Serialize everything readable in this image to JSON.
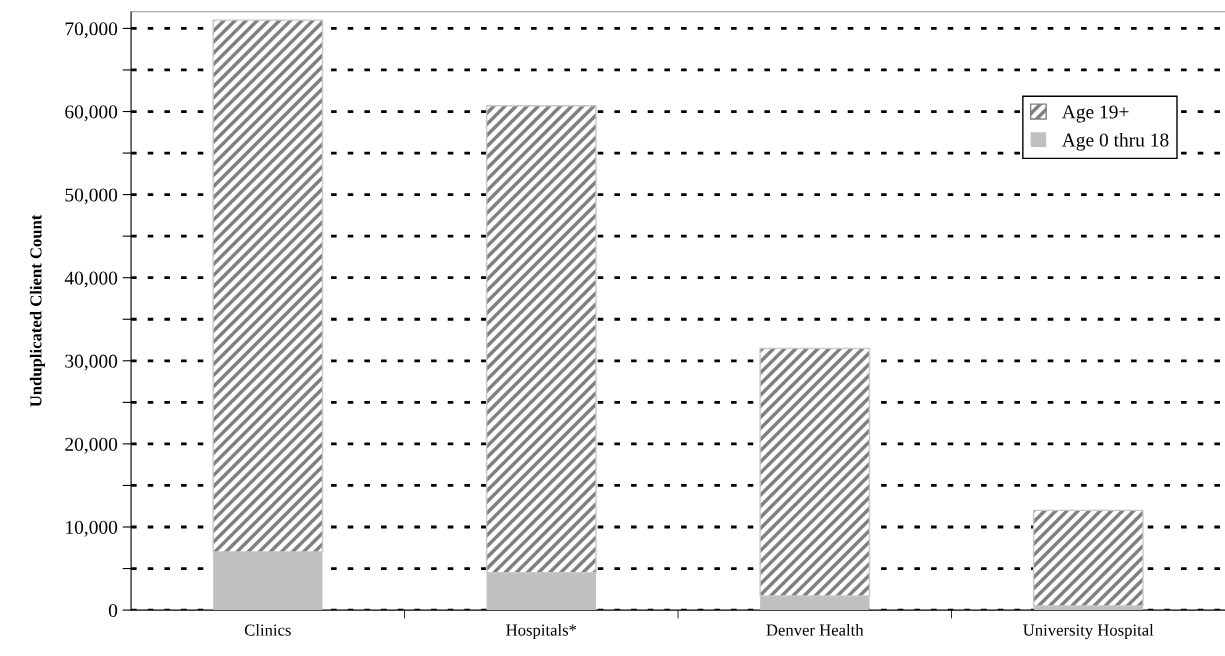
{
  "chart_data": {
    "type": "bar",
    "stacked": true,
    "ylabel": "Unduplicated Client Count",
    "categories": [
      "Clinics",
      "Hospitals*",
      "Denver Health",
      "University Hospital"
    ],
    "series": [
      {
        "name": "Age 0 thru 18",
        "color": "#c0c0c0",
        "values": [
          7000,
          4500,
          1700,
          500
        ]
      },
      {
        "name": "Age 19+",
        "color": "#808080",
        "values": [
          64000,
          56200,
          29800,
          11500
        ]
      }
    ],
    "ylim": [
      0,
      72000
    ],
    "yticks": [
      0,
      {
        "value": 5000,
        "label": null
      },
      {
        "value": 10000,
        "label": "10,000"
      },
      {
        "value": 15000,
        "label": null
      },
      {
        "value": 20000,
        "label": "20,000"
      },
      {
        "value": 25000,
        "label": null
      },
      {
        "value": 30000,
        "label": "30,000"
      },
      {
        "value": 35000,
        "label": null
      },
      {
        "value": 40000,
        "label": "40,000"
      },
      {
        "value": 45000,
        "label": null
      },
      {
        "value": 50000,
        "label": "50,000"
      },
      {
        "value": 55000,
        "label": null
      },
      {
        "value": 60000,
        "label": "60,000"
      },
      {
        "value": 65000,
        "label": null
      },
      {
        "value": 70000,
        "label": "70,000"
      }
    ],
    "grid": "y",
    "legend": "top right"
  }
}
